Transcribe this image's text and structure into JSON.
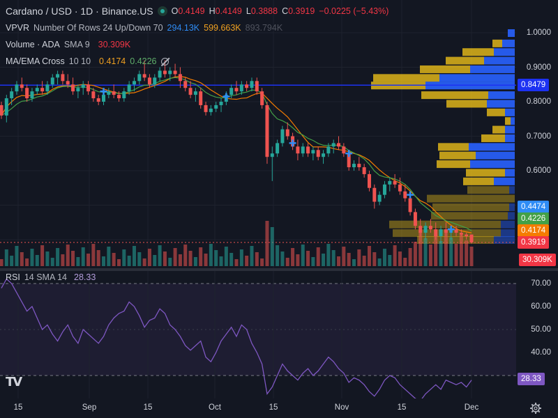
{
  "header": {
    "symbol": "Cardano / USD · 1D · Binance.US",
    "o_label": "O",
    "o": "0.4149",
    "h_label": "H",
    "h": "0.4149",
    "l_label": "L",
    "l": "0.3888",
    "c_label": "C",
    "c": "0.3919",
    "change": "−0.0225 (−5.43%)"
  },
  "indicators": {
    "vpvr": {
      "name": "VPVR",
      "params": "Number Of Rows 24 Up/Down 70",
      "up": "294.13K",
      "down": "599.663K",
      "total": "893.794K"
    },
    "volume": {
      "name": "Volume · ADA",
      "params": "SMA 9",
      "value": "30.309K"
    },
    "ma": {
      "name": "MA/EMA Cross",
      "params": "10 10",
      "ma_value": "0.4174",
      "ema_value": "0.4226"
    },
    "rsi": {
      "name": "RSI",
      "params": "14 SMA 14",
      "value": "28.33"
    }
  },
  "price_axis": [
    "1.0000",
    "0.9000",
    "0.8000",
    "0.7000",
    "0.6000"
  ],
  "price_tags": [
    {
      "label": "0.8479",
      "color": "#1d32f2"
    },
    {
      "label": "0.4474",
      "color": "#2f8cf5"
    },
    {
      "label": "0.4226",
      "color": "#43a047"
    },
    {
      "label": "0.4174",
      "color": "#f57c00"
    },
    {
      "label": "0.3919",
      "color": "#f23645"
    },
    {
      "label": "30.309K",
      "color": "#f23645"
    }
  ],
  "rsi_axis": [
    "70.00",
    "60.00",
    "50.00",
    "40.00"
  ],
  "rsi_tag": {
    "label": "28.33",
    "color": "#7e57c2"
  },
  "time_axis": [
    "15",
    "Sep",
    "15",
    "Oct",
    "15",
    "Nov",
    "15",
    "Dec"
  ],
  "logo": "TV",
  "colors": {
    "up": "#26a69a",
    "down": "#ef5350",
    "vpvr_up": "#2962ff",
    "vpvr_down": "#f5c518",
    "poc": "#1d32f2",
    "rsi": "#7e57c2",
    "ma": "#f57c00",
    "ema": "#43a047"
  },
  "chart_data": {
    "type": "candlestick",
    "price_range": [
      0.37,
      1.02
    ],
    "candles_ohlc": [
      [
        0.79,
        0.8,
        0.75,
        0.76
      ],
      [
        0.76,
        0.82,
        0.74,
        0.81
      ],
      [
        0.81,
        0.84,
        0.79,
        0.83
      ],
      [
        0.83,
        0.86,
        0.82,
        0.85
      ],
      [
        0.85,
        0.87,
        0.83,
        0.84
      ],
      [
        0.84,
        0.85,
        0.8,
        0.81
      ],
      [
        0.81,
        0.84,
        0.8,
        0.83
      ],
      [
        0.83,
        0.85,
        0.82,
        0.84
      ],
      [
        0.84,
        0.86,
        0.82,
        0.83
      ],
      [
        0.83,
        0.86,
        0.82,
        0.85
      ],
      [
        0.85,
        0.88,
        0.84,
        0.87
      ],
      [
        0.87,
        0.89,
        0.85,
        0.88
      ],
      [
        0.88,
        0.89,
        0.85,
        0.86
      ],
      [
        0.86,
        0.88,
        0.84,
        0.85
      ],
      [
        0.85,
        0.87,
        0.82,
        0.83
      ],
      [
        0.83,
        0.85,
        0.81,
        0.84
      ],
      [
        0.84,
        0.86,
        0.82,
        0.85
      ],
      [
        0.85,
        0.86,
        0.82,
        0.83
      ],
      [
        0.83,
        0.84,
        0.8,
        0.81
      ],
      [
        0.81,
        0.82,
        0.79,
        0.8
      ],
      [
        0.8,
        0.83,
        0.79,
        0.82
      ],
      [
        0.82,
        0.84,
        0.81,
        0.83
      ],
      [
        0.83,
        0.85,
        0.81,
        0.82
      ],
      [
        0.82,
        0.83,
        0.8,
        0.81
      ],
      [
        0.81,
        0.84,
        0.8,
        0.83
      ],
      [
        0.83,
        0.86,
        0.82,
        0.85
      ],
      [
        0.85,
        0.87,
        0.83,
        0.86
      ],
      [
        0.86,
        0.89,
        0.85,
        0.88
      ],
      [
        0.88,
        0.92,
        0.86,
        0.87
      ],
      [
        0.87,
        0.88,
        0.84,
        0.85
      ],
      [
        0.85,
        0.88,
        0.84,
        0.87
      ],
      [
        0.87,
        0.9,
        0.86,
        0.89
      ],
      [
        0.89,
        0.92,
        0.87,
        0.88
      ],
      [
        0.88,
        0.9,
        0.86,
        0.89
      ],
      [
        0.89,
        0.91,
        0.87,
        0.88
      ],
      [
        0.88,
        0.9,
        0.84,
        0.86
      ],
      [
        0.86,
        0.87,
        0.83,
        0.84
      ],
      [
        0.84,
        0.86,
        0.81,
        0.82
      ],
      [
        0.82,
        0.84,
        0.8,
        0.83
      ],
      [
        0.83,
        0.84,
        0.78,
        0.79
      ],
      [
        0.79,
        0.8,
        0.76,
        0.77
      ],
      [
        0.77,
        0.79,
        0.76,
        0.78
      ],
      [
        0.78,
        0.8,
        0.77,
        0.79
      ],
      [
        0.79,
        0.81,
        0.77,
        0.8
      ],
      [
        0.8,
        0.83,
        0.79,
        0.82
      ],
      [
        0.82,
        0.85,
        0.81,
        0.84
      ],
      [
        0.84,
        0.86,
        0.82,
        0.83
      ],
      [
        0.83,
        0.86,
        0.82,
        0.85
      ],
      [
        0.85,
        0.86,
        0.83,
        0.84
      ],
      [
        0.84,
        0.87,
        0.83,
        0.86
      ],
      [
        0.86,
        0.87,
        0.82,
        0.83
      ],
      [
        0.83,
        0.84,
        0.78,
        0.79
      ],
      [
        0.79,
        0.8,
        0.62,
        0.64
      ],
      [
        0.64,
        0.67,
        0.57,
        0.65
      ],
      [
        0.65,
        0.69,
        0.64,
        0.68
      ],
      [
        0.68,
        0.73,
        0.67,
        0.72
      ],
      [
        0.72,
        0.74,
        0.69,
        0.7
      ],
      [
        0.7,
        0.71,
        0.66,
        0.67
      ],
      [
        0.67,
        0.69,
        0.63,
        0.65
      ],
      [
        0.65,
        0.68,
        0.64,
        0.67
      ],
      [
        0.67,
        0.68,
        0.64,
        0.65
      ],
      [
        0.65,
        0.67,
        0.63,
        0.66
      ],
      [
        0.66,
        0.67,
        0.63,
        0.64
      ],
      [
        0.64,
        0.66,
        0.62,
        0.65
      ],
      [
        0.65,
        0.68,
        0.64,
        0.67
      ],
      [
        0.67,
        0.69,
        0.65,
        0.68
      ],
      [
        0.68,
        0.7,
        0.66,
        0.67
      ],
      [
        0.67,
        0.68,
        0.64,
        0.65
      ],
      [
        0.65,
        0.66,
        0.6,
        0.61
      ],
      [
        0.61,
        0.63,
        0.6,
        0.62
      ],
      [
        0.62,
        0.64,
        0.6,
        0.61
      ],
      [
        0.61,
        0.62,
        0.58,
        0.59
      ],
      [
        0.59,
        0.6,
        0.54,
        0.55
      ],
      [
        0.55,
        0.56,
        0.49,
        0.51
      ],
      [
        0.51,
        0.54,
        0.5,
        0.53
      ],
      [
        0.53,
        0.57,
        0.52,
        0.56
      ],
      [
        0.56,
        0.58,
        0.54,
        0.57
      ],
      [
        0.57,
        0.59,
        0.55,
        0.56
      ],
      [
        0.56,
        0.58,
        0.53,
        0.54
      ],
      [
        0.54,
        0.56,
        0.51,
        0.52
      ],
      [
        0.52,
        0.53,
        0.47,
        0.48
      ],
      [
        0.48,
        0.49,
        0.43,
        0.44
      ],
      [
        0.44,
        0.46,
        0.41,
        0.42
      ],
      [
        0.42,
        0.45,
        0.4,
        0.44
      ],
      [
        0.44,
        0.46,
        0.42,
        0.43
      ],
      [
        0.43,
        0.45,
        0.4,
        0.41
      ],
      [
        0.41,
        0.44,
        0.39,
        0.43
      ],
      [
        0.43,
        0.45,
        0.41,
        0.42
      ],
      [
        0.42,
        0.44,
        0.4,
        0.43
      ],
      [
        0.43,
        0.44,
        0.41,
        0.42
      ],
      [
        0.42,
        0.43,
        0.41,
        0.415
      ],
      [
        0.415,
        0.42,
        0.4,
        0.41
      ],
      [
        0.4149,
        0.4149,
        0.3888,
        0.3919
      ]
    ],
    "rsi": [
      68,
      72,
      70,
      66,
      62,
      58,
      60,
      55,
      50,
      52,
      48,
      45,
      49,
      52,
      47,
      44,
      50,
      48,
      46,
      44,
      47,
      52,
      55,
      57,
      58,
      62,
      60,
      56,
      51,
      54,
      55,
      59,
      57,
      52,
      50,
      47,
      43,
      41,
      43,
      45,
      38,
      36,
      40,
      45,
      48,
      51,
      47,
      52,
      50,
      44,
      40,
      35,
      22,
      25,
      30,
      35,
      32,
      30,
      28,
      31,
      33,
      30,
      32,
      35,
      38,
      36,
      33,
      31,
      27,
      29,
      28,
      26,
      23,
      21,
      24,
      28,
      30,
      29,
      26,
      24,
      22,
      20,
      19,
      22,
      24,
      26,
      24,
      28,
      27,
      26,
      27,
      25,
      28
    ]
  }
}
